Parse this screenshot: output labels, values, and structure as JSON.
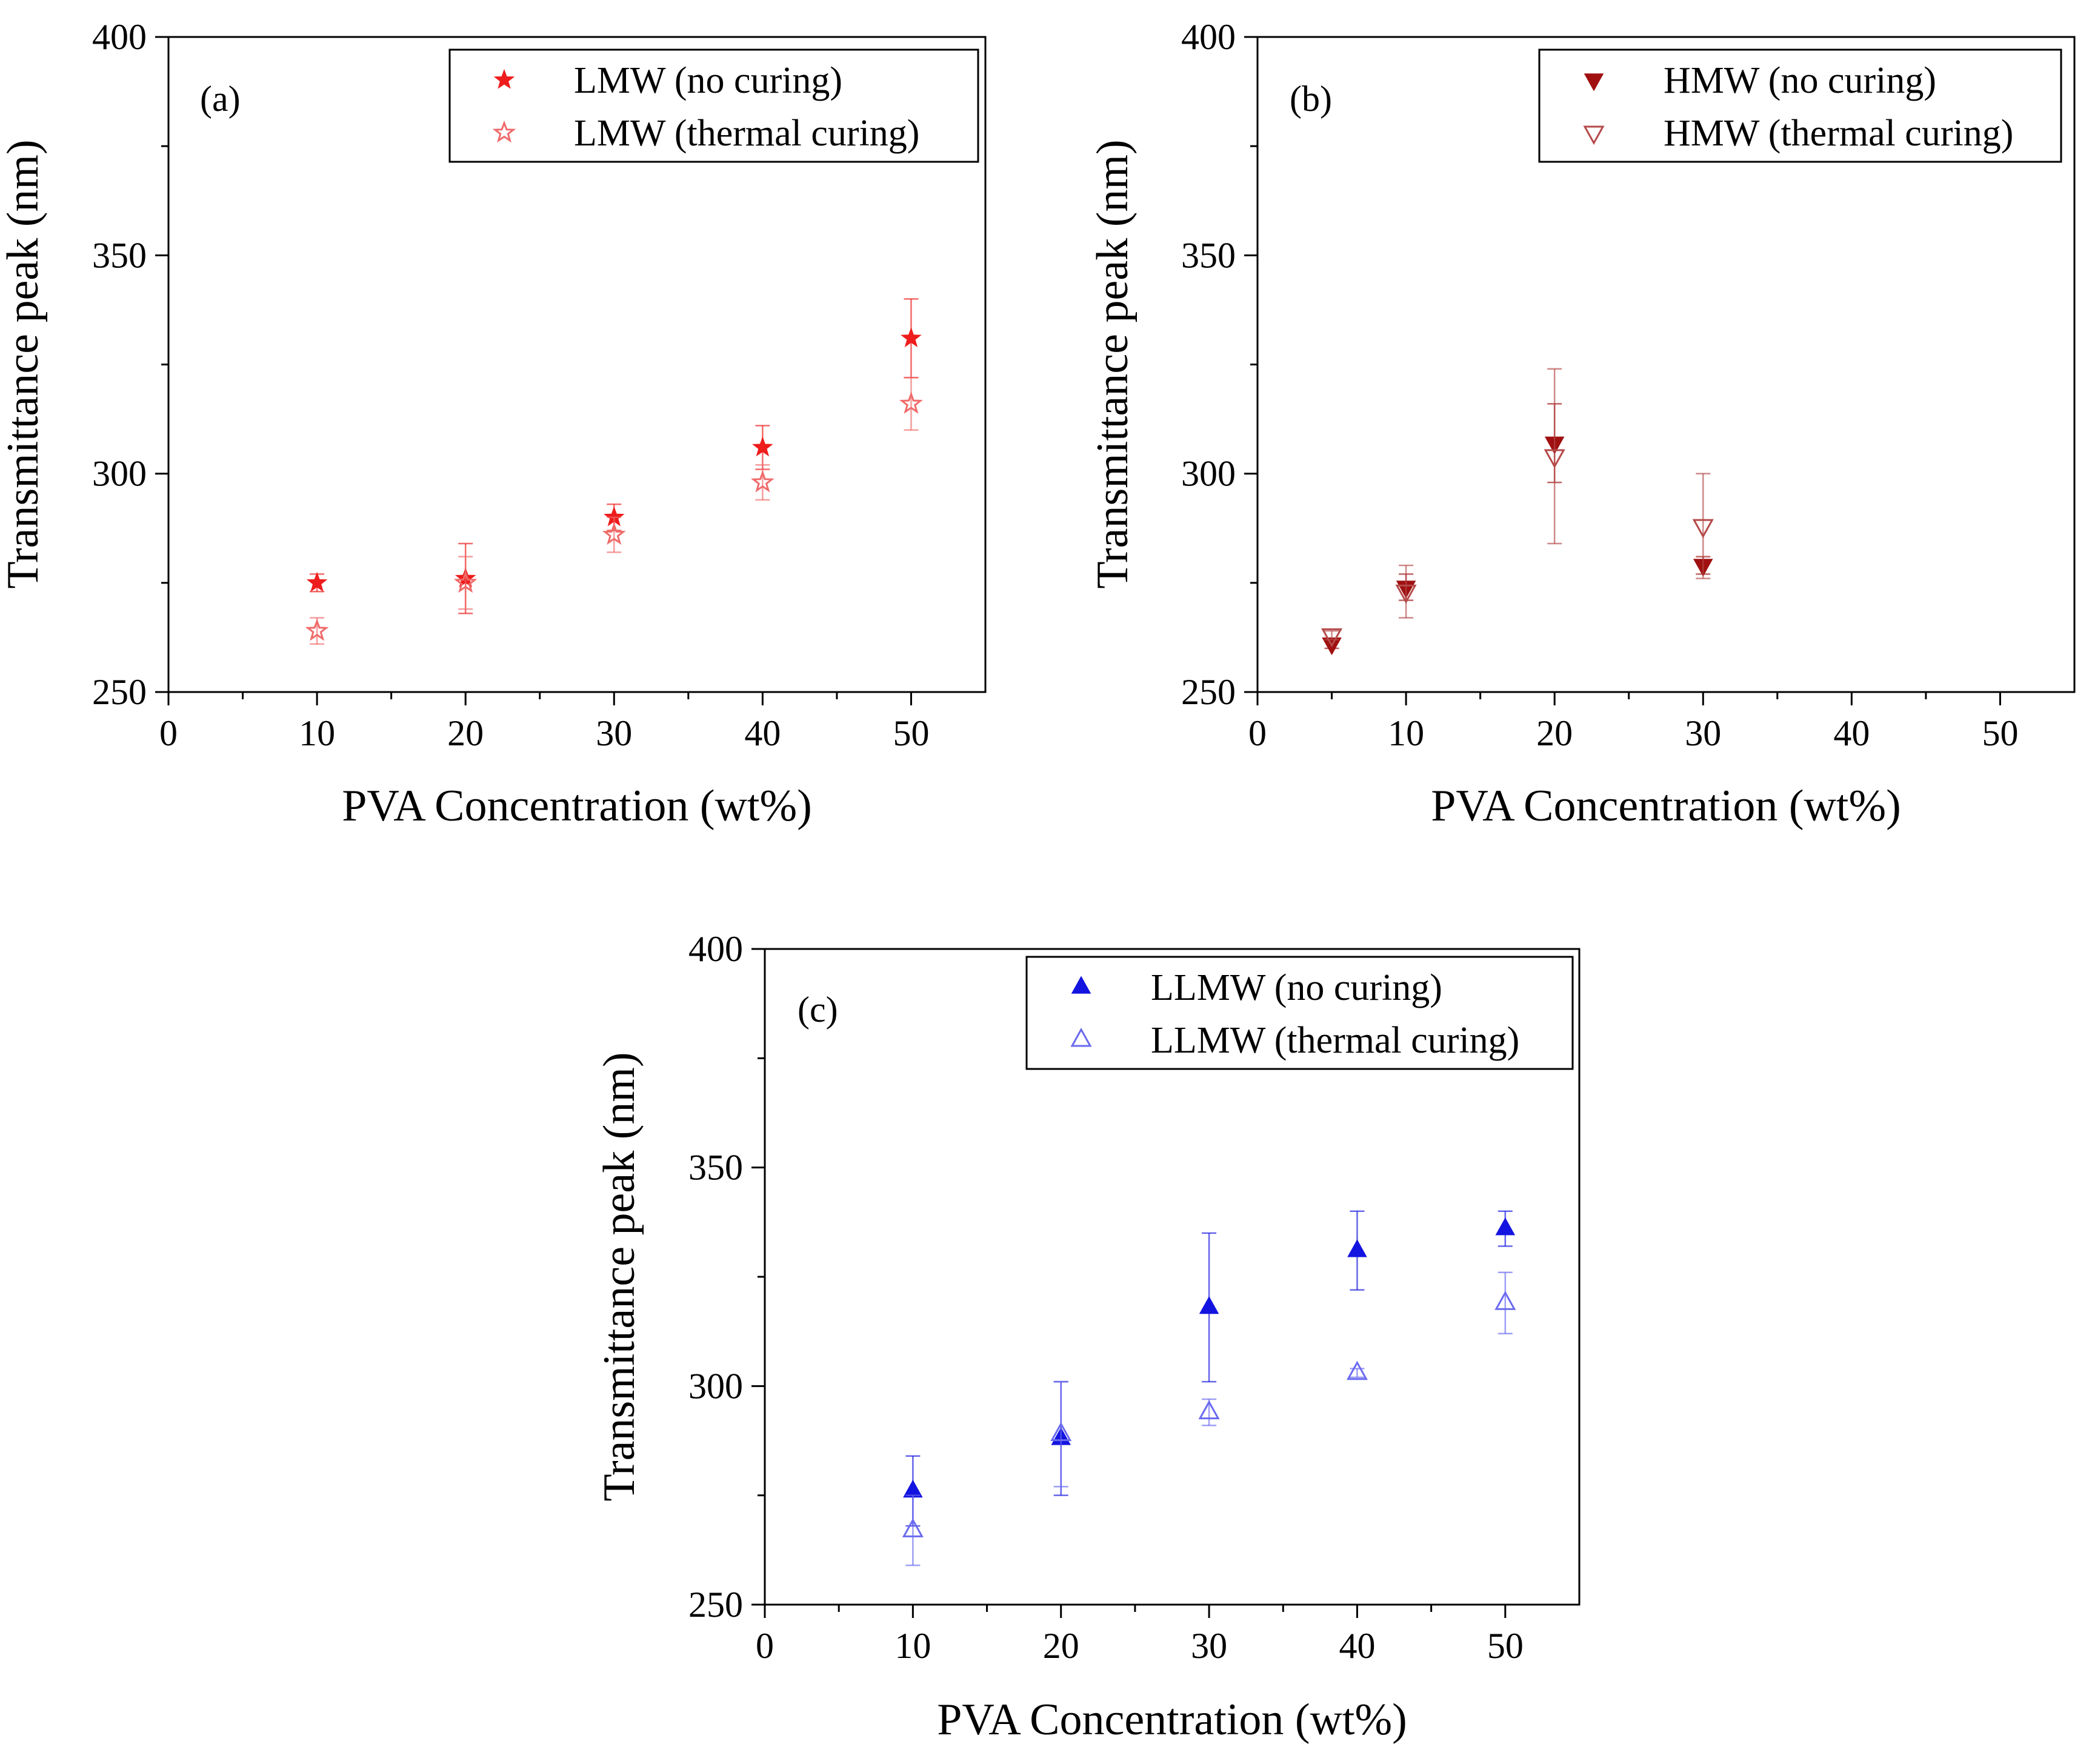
{
  "chart_data": [
    {
      "type": "scatter",
      "panel_label": "(a)",
      "xlabel": "PVA Concentration (wt%)",
      "ylabel": "Transmittance peak (nm)",
      "xlim": [
        0,
        55
      ],
      "ylim": [
        250,
        400
      ],
      "x_ticks": [
        "0",
        "10",
        "20",
        "30",
        "40",
        "50"
      ],
      "y_ticks": [
        "250",
        "300",
        "350",
        "400"
      ],
      "legend_position": "top-right",
      "series": [
        {
          "name": "LMW (no curing)",
          "marker": "star",
          "filled": true,
          "color": "#ee1c1c",
          "x": [
            10,
            20,
            30,
            40,
            50
          ],
          "y": [
            275,
            276,
            290,
            306,
            331
          ],
          "err": [
            2,
            8,
            3,
            5,
            9
          ]
        },
        {
          "name": "LMW (thermal curing)",
          "marker": "star",
          "filled": false,
          "color": "#f06a6a",
          "x": [
            10,
            20,
            30,
            40,
            50
          ],
          "y": [
            264,
            275,
            286,
            298,
            316
          ],
          "err": [
            3,
            6,
            4,
            4,
            6
          ]
        }
      ]
    },
    {
      "type": "scatter",
      "panel_label": "(b)",
      "xlabel": "PVA Concentration (wt%)",
      "ylabel": "Transmittance peak (nm)",
      "xlim": [
        0,
        55
      ],
      "ylim": [
        250,
        400
      ],
      "x_ticks": [
        "0",
        "10",
        "20",
        "30",
        "40",
        "50"
      ],
      "y_ticks": [
        "250",
        "300",
        "350",
        "400"
      ],
      "legend_position": "top-right",
      "series": [
        {
          "name": "HMW (no curing)",
          "marker": "triangle-down",
          "filled": true,
          "color": "#a01010",
          "x": [
            5,
            10,
            20,
            30
          ],
          "y": [
            261,
            274,
            307,
            279
          ],
          "err": [
            1,
            3,
            9,
            2
          ]
        },
        {
          "name": "HMW (thermal curing)",
          "marker": "triangle-down",
          "filled": false,
          "color": "#b54a4a",
          "x": [
            5,
            10,
            20,
            30
          ],
          "y": [
            263,
            273,
            304,
            288
          ],
          "err": [
            1,
            6,
            20,
            12
          ]
        }
      ]
    },
    {
      "type": "scatter",
      "panel_label": "(c)",
      "xlabel": "PVA Concentration (wt%)",
      "ylabel": "Transmittance peak (nm)",
      "xlim": [
        0,
        55
      ],
      "ylim": [
        250,
        400
      ],
      "x_ticks": [
        "0",
        "10",
        "20",
        "30",
        "40",
        "50"
      ],
      "y_ticks": [
        "250",
        "300",
        "350",
        "400"
      ],
      "legend_position": "top-right",
      "series": [
        {
          "name": "LLMW (no curing)",
          "marker": "triangle-up",
          "filled": true,
          "color": "#1414e0",
          "x": [
            10,
            20,
            30,
            40,
            50
          ],
          "y": [
            276,
            288,
            318,
            331,
            336
          ],
          "err": [
            8,
            13,
            17,
            9,
            4
          ]
        },
        {
          "name": "LLMW (thermal curing)",
          "marker": "triangle-up",
          "filled": false,
          "color": "#6a6af0",
          "x": [
            10,
            20,
            30,
            40,
            50
          ],
          "y": [
            267,
            289,
            294,
            303,
            319
          ],
          "err": [
            8,
            12,
            3,
            1,
            7
          ]
        }
      ]
    }
  ]
}
